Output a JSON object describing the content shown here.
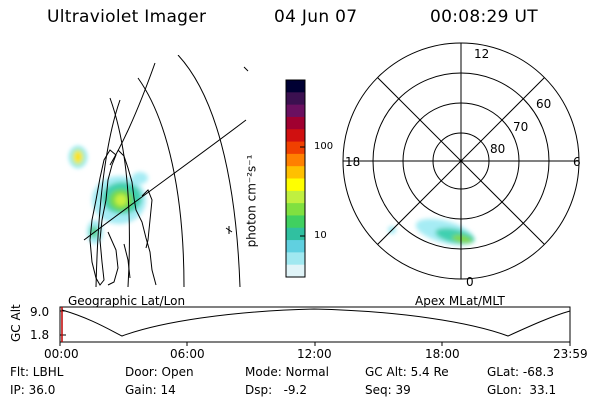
{
  "header": {
    "instrument": "Ultraviolet Imager",
    "date": "04 Jun 07",
    "time": "00:08:29 UT"
  },
  "geo_panel": {
    "title": "Geographic Lat/Lon"
  },
  "colorbar": {
    "unit_label": "photon cm⁻²s⁻¹",
    "ticks": [
      "100",
      "10"
    ],
    "colors": [
      "#000033",
      "#3b1050",
      "#6a1060",
      "#a00030",
      "#d01010",
      "#f04000",
      "#ff8000",
      "#ffc000",
      "#ffff00",
      "#c0f040",
      "#80e040",
      "#40d060",
      "#30c0a0",
      "#60d0e0",
      "#a0e8f0",
      "#e0f4f8"
    ]
  },
  "polar_panel": {
    "title": "Apex MLat/MLT",
    "mlt_labels": {
      "top": "12",
      "bottom": "0",
      "left": "18",
      "right": "6"
    },
    "lat_labels": [
      "60",
      "70",
      "80"
    ]
  },
  "altitude_panel": {
    "axis_label": "GC Alt",
    "y_ticks": [
      "9.0",
      "1.8"
    ],
    "x_ticks": [
      "00:00",
      "06:00",
      "12:00",
      "18:00",
      "23:59"
    ]
  },
  "status": {
    "row1": {
      "flt": "Flt: LBHL",
      "door": "Door: Open",
      "mode": "Mode: Normal",
      "gcalt": "GC Alt: 5.4 Re",
      "glat": "GLat: -68.3"
    },
    "row2": {
      "ip": "IP: 36.0",
      "gain": "Gain: 14",
      "dsp": "Dsp:   -9.2",
      "seq": "Seq: 39",
      "glon": "GLon:  33.1"
    }
  }
}
